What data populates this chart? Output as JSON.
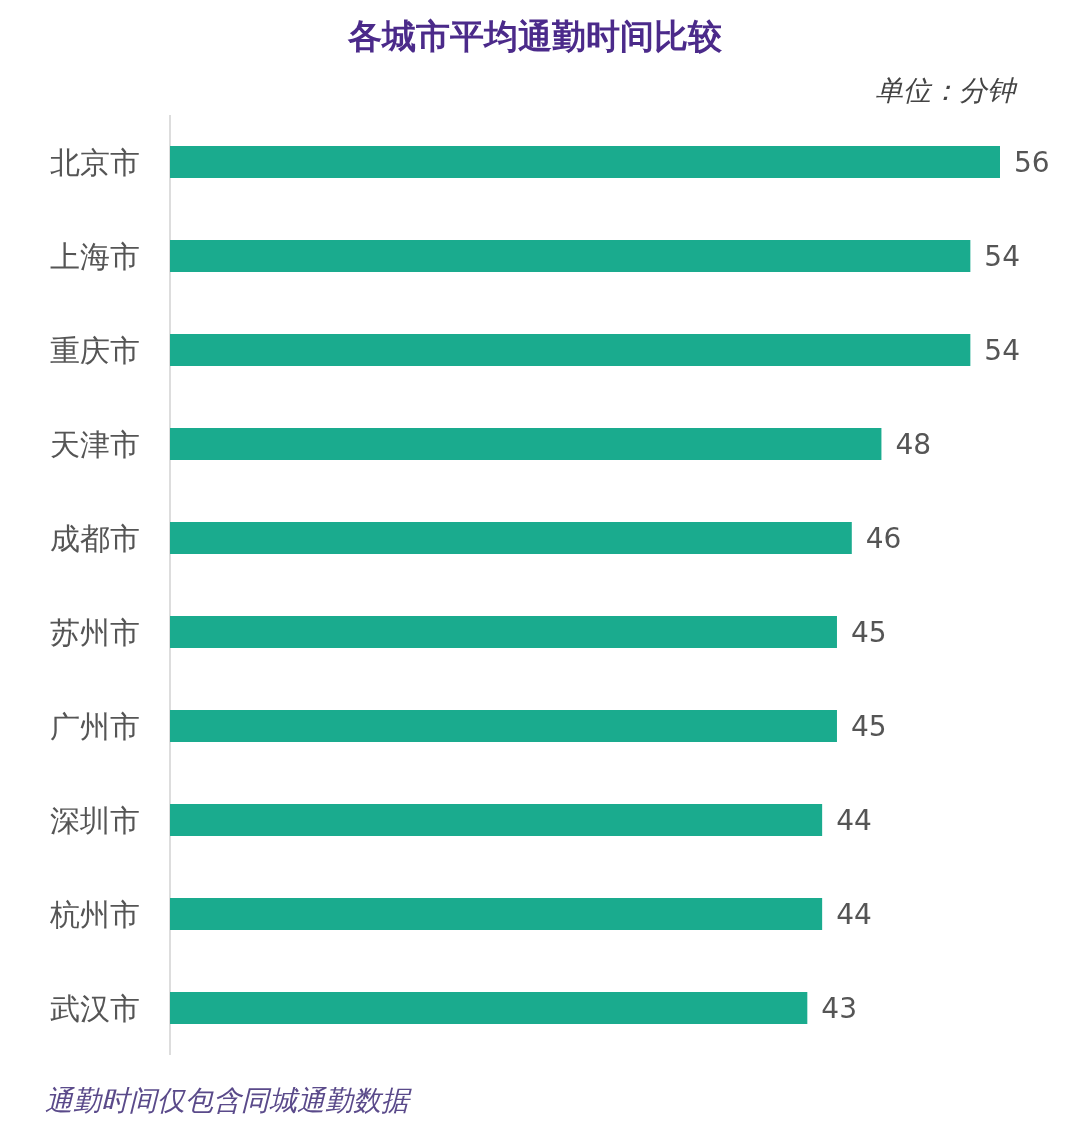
{
  "chart_data": {
    "type": "bar",
    "orientation": "horizontal",
    "title": "各城市平均通勤时间比较",
    "subtitle": "单位：分钟",
    "categories": [
      "北京市",
      "上海市",
      "重庆市",
      "天津市",
      "成都市",
      "苏州市",
      "广州市",
      "深圳市",
      "杭州市",
      "武汉市"
    ],
    "values": [
      56,
      54,
      54,
      48,
      46,
      45,
      45,
      44,
      44,
      43
    ],
    "color": "#1aab8e",
    "data_labels": true,
    "annotations": [
      "通勤时间仅包含同城通勤数据"
    ]
  }
}
